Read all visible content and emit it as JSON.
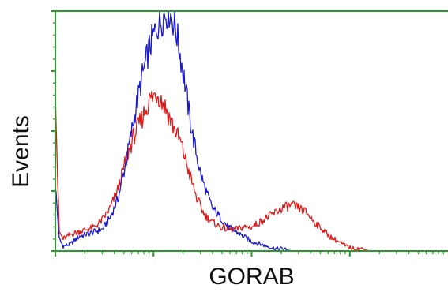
{
  "chart_data": {
    "type": "line",
    "title": "",
    "xlabel": "GORAB",
    "ylabel": "Events",
    "x_scale": "log",
    "x_decades": 4,
    "xlim": [
      0,
      1
    ],
    "ylim": [
      0,
      1
    ],
    "grid": false,
    "legend": "none",
    "axis_color": "#2a9a2a",
    "series": [
      {
        "color": "#1a1acc",
        "x": [
          0.0,
          0.01,
          0.02,
          0.04,
          0.06,
          0.08,
          0.1,
          0.12,
          0.14,
          0.16,
          0.18,
          0.2,
          0.22,
          0.24,
          0.26,
          0.28,
          0.29,
          0.3,
          0.31,
          0.32,
          0.33,
          0.34,
          0.35,
          0.36,
          0.37,
          0.38,
          0.39,
          0.4,
          0.42,
          0.44,
          0.46,
          0.48,
          0.5,
          0.52,
          0.54,
          0.56,
          0.58,
          0.6,
          0.64,
          0.7,
          1.0
        ],
        "y": [
          0.28,
          0.05,
          0.02,
          0.03,
          0.06,
          0.07,
          0.08,
          0.09,
          0.14,
          0.22,
          0.37,
          0.55,
          0.72,
          0.85,
          0.94,
          0.99,
          1.0,
          0.96,
          0.9,
          0.8,
          0.7,
          0.58,
          0.48,
          0.4,
          0.32,
          0.27,
          0.22,
          0.18,
          0.14,
          0.1,
          0.08,
          0.06,
          0.04,
          0.03,
          0.02,
          0.01,
          0.01,
          0.0,
          0.0,
          0.0,
          0.0
        ]
      },
      {
        "color": "#dd1a1a",
        "x": [
          0.0,
          0.005,
          0.01,
          0.02,
          0.04,
          0.06,
          0.08,
          0.1,
          0.12,
          0.14,
          0.16,
          0.18,
          0.2,
          0.22,
          0.24,
          0.26,
          0.28,
          0.3,
          0.32,
          0.34,
          0.36,
          0.38,
          0.4,
          0.42,
          0.44,
          0.46,
          0.48,
          0.5,
          0.52,
          0.54,
          0.56,
          0.58,
          0.6,
          0.62,
          0.64,
          0.66,
          0.68,
          0.7,
          0.72,
          0.74,
          0.76,
          0.78,
          0.8,
          0.84,
          0.88,
          0.92,
          1.0
        ],
        "y": [
          0.72,
          0.35,
          0.08,
          0.05,
          0.07,
          0.08,
          0.09,
          0.1,
          0.13,
          0.18,
          0.26,
          0.38,
          0.48,
          0.55,
          0.63,
          0.66,
          0.6,
          0.52,
          0.45,
          0.33,
          0.22,
          0.15,
          0.12,
          0.1,
          0.09,
          0.09,
          0.1,
          0.1,
          0.12,
          0.14,
          0.16,
          0.18,
          0.19,
          0.18,
          0.16,
          0.12,
          0.09,
          0.06,
          0.04,
          0.02,
          0.01,
          0.01,
          0.0,
          0.0,
          0.0,
          0.0,
          0.0
        ]
      }
    ]
  }
}
